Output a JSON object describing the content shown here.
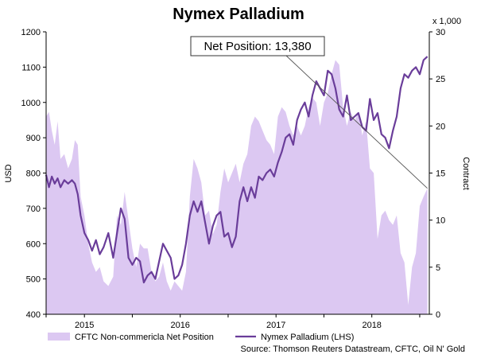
{
  "chart_data": {
    "type": "line",
    "title": "Nymex Palladium",
    "ylabel_left": "USD",
    "ylabel_right": "Contract",
    "right_axis_multiplier": "x 1,000",
    "ylim_left": [
      400,
      1200
    ],
    "left_ticks": [
      "400",
      "500",
      "600",
      "700",
      "800",
      "900",
      "1000",
      "1100",
      "1200"
    ],
    "ylim_right": [
      0,
      30
    ],
    "right_ticks": [
      "0",
      "5",
      "10",
      "15",
      "20",
      "25",
      "30"
    ],
    "x_range": [
      2014.6,
      2018.6
    ],
    "x_ticks": [
      {
        "x": 2015.0,
        "label": "2015"
      },
      {
        "x": 2016.0,
        "label": "2016"
      },
      {
        "x": 2017.0,
        "label": "2017"
      },
      {
        "x": 2018.0,
        "label": "2018"
      }
    ],
    "annotation": {
      "text": "Net Position: 13,380",
      "points_to": {
        "x": 2018.58,
        "y_right": 13.38
      }
    },
    "grid": false,
    "legend_position": "bottom",
    "series": [
      {
        "name": "CFTC Non-commericla Net Position",
        "kind": "area",
        "axis": "right",
        "color": "#dcc8f2",
        "x": [
          2014.6,
          2014.63,
          2014.66,
          2014.69,
          2014.72,
          2014.75,
          2014.79,
          2014.83,
          2014.87,
          2014.9,
          2014.93,
          2014.96,
          2015.0,
          2015.04,
          2015.08,
          2015.12,
          2015.16,
          2015.2,
          2015.25,
          2015.3,
          2015.34,
          2015.38,
          2015.42,
          2015.46,
          2015.5,
          2015.54,
          2015.58,
          2015.62,
          2015.66,
          2015.7,
          2015.74,
          2015.78,
          2015.82,
          2015.86,
          2015.9,
          2015.94,
          2015.98,
          2016.02,
          2016.06,
          2016.1,
          2016.14,
          2016.18,
          2016.22,
          2016.26,
          2016.3,
          2016.34,
          2016.38,
          2016.42,
          2016.46,
          2016.5,
          2016.54,
          2016.58,
          2016.62,
          2016.66,
          2016.7,
          2016.74,
          2016.78,
          2016.82,
          2016.86,
          2016.9,
          2016.94,
          2016.98,
          2017.02,
          2017.06,
          2017.1,
          2017.14,
          2017.18,
          2017.22,
          2017.26,
          2017.3,
          2017.34,
          2017.38,
          2017.42,
          2017.46,
          2017.5,
          2017.54,
          2017.58,
          2017.62,
          2017.66,
          2017.7,
          2017.74,
          2017.78,
          2017.82,
          2017.86,
          2017.9,
          2017.94,
          2017.98,
          2018.02,
          2018.06,
          2018.1,
          2018.14,
          2018.18,
          2018.22,
          2018.26,
          2018.3,
          2018.34,
          2018.38,
          2018.42,
          2018.46,
          2018.5,
          2018.54,
          2018.58
        ],
        "values": [
          21.0,
          21.5,
          19.5,
          18.0,
          20.5,
          16.5,
          17.0,
          15.5,
          16.5,
          18.5,
          18.0,
          12.5,
          10.5,
          7.5,
          5.5,
          4.5,
          5.0,
          3.5,
          3.0,
          4.0,
          10.5,
          9.5,
          13.0,
          10.0,
          7.0,
          5.0,
          7.5,
          7.0,
          7.0,
          4.5,
          3.5,
          4.0,
          5.5,
          3.5,
          2.5,
          3.5,
          3.0,
          2.5,
          4.5,
          12.5,
          16.5,
          15.5,
          14.0,
          10.5,
          11.0,
          8.5,
          9.5,
          13.0,
          15.5,
          14.0,
          15.0,
          16.0,
          14.0,
          16.0,
          17.0,
          20.0,
          21.0,
          20.5,
          19.5,
          18.5,
          18.0,
          17.0,
          21.0,
          22.0,
          21.5,
          20.0,
          19.0,
          20.0,
          19.0,
          20.0,
          22.0,
          23.0,
          22.5,
          20.0,
          22.5,
          23.5,
          25.5,
          27.0,
          26.5,
          22.0,
          20.0,
          21.5,
          20.5,
          21.5,
          19.0,
          20.5,
          15.5,
          15.0,
          8.0,
          10.5,
          11.0,
          10.0,
          9.5,
          10.5,
          6.5,
          5.5,
          1.0,
          5.0,
          6.5,
          11.5,
          12.5,
          13.38
        ]
      },
      {
        "name": "Nymex Palladium (LHS)",
        "kind": "line",
        "axis": "left",
        "color": "#6a3d9a",
        "x": [
          2014.6,
          2014.63,
          2014.66,
          2014.69,
          2014.72,
          2014.75,
          2014.79,
          2014.83,
          2014.87,
          2014.9,
          2014.93,
          2014.96,
          2015.0,
          2015.04,
          2015.08,
          2015.12,
          2015.16,
          2015.2,
          2015.25,
          2015.3,
          2015.34,
          2015.38,
          2015.42,
          2015.46,
          2015.5,
          2015.54,
          2015.58,
          2015.62,
          2015.66,
          2015.7,
          2015.74,
          2015.78,
          2015.82,
          2015.86,
          2015.9,
          2015.94,
          2015.98,
          2016.02,
          2016.06,
          2016.1,
          2016.14,
          2016.18,
          2016.22,
          2016.26,
          2016.3,
          2016.34,
          2016.38,
          2016.42,
          2016.46,
          2016.5,
          2016.54,
          2016.58,
          2016.62,
          2016.66,
          2016.7,
          2016.74,
          2016.78,
          2016.82,
          2016.86,
          2016.9,
          2016.94,
          2016.98,
          2017.02,
          2017.06,
          2017.1,
          2017.14,
          2017.18,
          2017.22,
          2017.26,
          2017.3,
          2017.34,
          2017.38,
          2017.42,
          2017.46,
          2017.5,
          2017.54,
          2017.58,
          2017.62,
          2017.66,
          2017.7,
          2017.74,
          2017.78,
          2017.82,
          2017.86,
          2017.9,
          2017.94,
          2017.98,
          2018.02,
          2018.06,
          2018.1,
          2018.14,
          2018.18,
          2018.22,
          2018.26,
          2018.3,
          2018.34,
          2018.38,
          2018.42,
          2018.46,
          2018.5,
          2018.54,
          2018.58
        ],
        "values": [
          795,
          760,
          790,
          770,
          785,
          760,
          780,
          770,
          780,
          770,
          740,
          680,
          630,
          610,
          580,
          610,
          570,
          590,
          630,
          560,
          630,
          700,
          670,
          560,
          540,
          560,
          550,
          490,
          510,
          520,
          500,
          550,
          600,
          580,
          560,
          500,
          510,
          540,
          600,
          680,
          720,
          690,
          720,
          660,
          600,
          650,
          680,
          690,
          620,
          630,
          590,
          620,
          720,
          760,
          720,
          760,
          730,
          790,
          780,
          800,
          810,
          790,
          830,
          860,
          900,
          910,
          880,
          950,
          980,
          1000,
          960,
          1020,
          1060,
          1040,
          1020,
          1090,
          1080,
          1040,
          980,
          960,
          1020,
          950,
          960,
          970,
          930,
          920,
          1010,
          950,
          970,
          910,
          900,
          870,
          920,
          960,
          1040,
          1080,
          1070,
          1090,
          1100,
          1080,
          1120,
          1130
        ]
      }
    ]
  },
  "legend": {
    "items": [
      {
        "label": "CFTC Non-commericla Net Position",
        "color": "#dcc8f2"
      },
      {
        "label": "Nymex Palladium (LHS)",
        "color": "#6a3d9a"
      }
    ]
  },
  "source_text": "Source: Thomson Reuters Datastream, CFTC, Oil N' Gold"
}
